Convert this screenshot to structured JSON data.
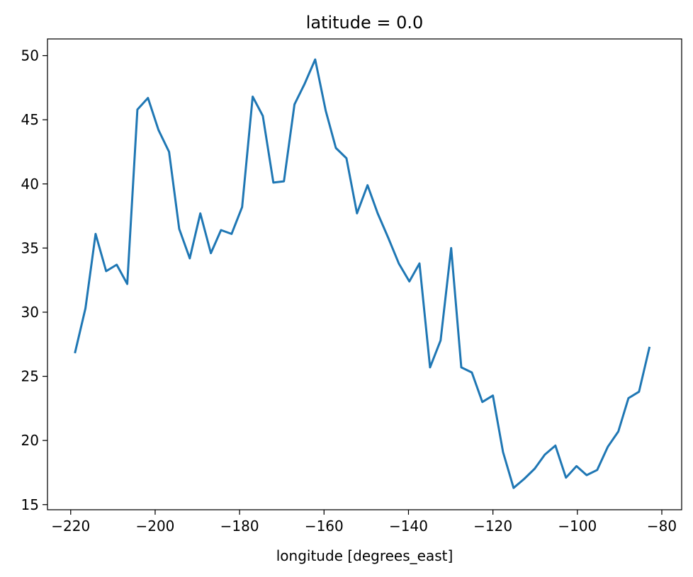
{
  "chart_data": {
    "type": "line",
    "title": "latitude = 0.0",
    "xlabel": "longitude [degrees_east]",
    "ylabel": "",
    "xlim": [
      -225.5,
      -75.3
    ],
    "ylim": [
      14.6,
      51.3
    ],
    "xticks": [
      -220,
      -200,
      -180,
      -160,
      -140,
      -120,
      -100,
      -80
    ],
    "xtick_labels": [
      "−220",
      "−200",
      "−180",
      "−160",
      "−140",
      "−120",
      "−100",
      "−80"
    ],
    "yticks": [
      15,
      20,
      25,
      30,
      35,
      40,
      45,
      50
    ],
    "ytick_labels": [
      "15",
      "20",
      "25",
      "30",
      "35",
      "40",
      "45",
      "50"
    ],
    "grid": false,
    "series": [
      {
        "name": "latitude = 0.0",
        "color": "#1f77b4",
        "x": [
          -219.0,
          -216.5,
          -214.1,
          -211.6,
          -209.1,
          -206.6,
          -204.2,
          -201.7,
          -199.2,
          -196.7,
          -194.3,
          -191.8,
          -189.3,
          -186.8,
          -184.4,
          -181.9,
          -179.4,
          -176.9,
          -174.5,
          -172.0,
          -169.5,
          -167.0,
          -164.6,
          -162.1,
          -159.6,
          -157.2,
          -154.7,
          -152.2,
          -149.7,
          -147.3,
          -144.8,
          -142.3,
          -139.8,
          -137.4,
          -134.9,
          -132.4,
          -129.9,
          -127.5,
          -125.0,
          -122.5,
          -120.0,
          -117.6,
          -115.1,
          -112.6,
          -110.1,
          -107.7,
          -105.2,
          -102.7,
          -100.2,
          -97.8,
          -95.3,
          -92.8,
          -90.3,
          -87.9,
          -85.4,
          -82.9
        ],
        "values": [
          26.8,
          30.3,
          36.1,
          33.2,
          33.7,
          32.2,
          45.8,
          46.7,
          44.2,
          42.5,
          36.5,
          34.2,
          37.7,
          34.6,
          36.4,
          36.1,
          38.2,
          46.8,
          45.3,
          40.1,
          40.2,
          46.2,
          47.8,
          49.7,
          45.7,
          42.8,
          42.0,
          37.7,
          39.9,
          37.7,
          35.8,
          33.8,
          32.4,
          33.8,
          25.7,
          27.8,
          35.0,
          25.7,
          25.3,
          23.0,
          23.5,
          19.1,
          16.3,
          17.0,
          17.8,
          18.9,
          19.6,
          17.1,
          18.0,
          17.3,
          17.7,
          19.5,
          20.7,
          23.3,
          23.8,
          27.3
        ]
      }
    ]
  }
}
